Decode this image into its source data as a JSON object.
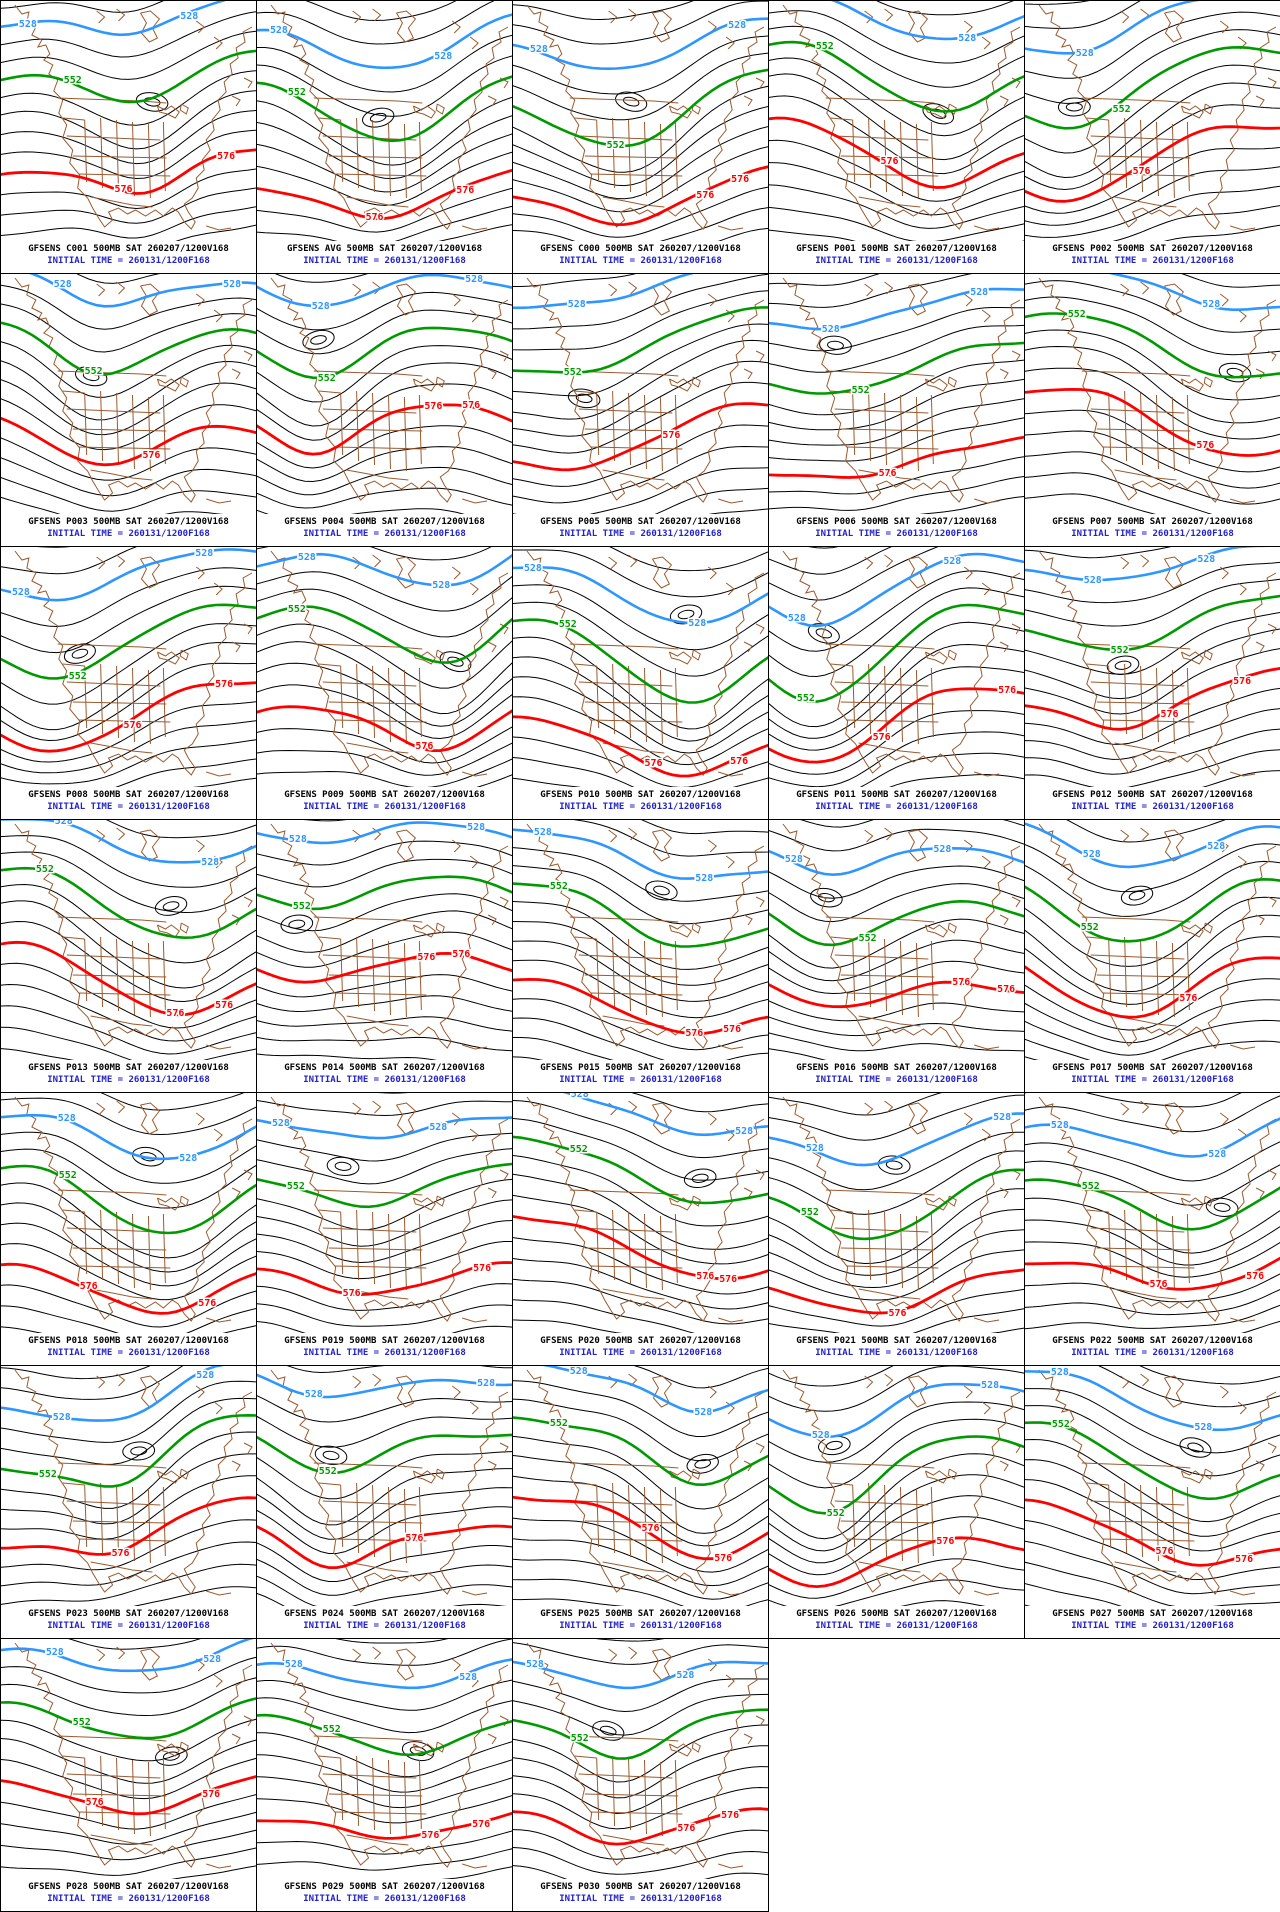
{
  "map_legend": {
    "blue_contour_label": "528",
    "green_contour_label": "552",
    "red_contour_label": "576"
  },
  "colors": {
    "background": "#ffffff",
    "contour_black": "#000000",
    "contour_blue": "#2e96ff",
    "contour_green": "#009a00",
    "contour_red": "#ff0000",
    "geography_brown": "#9b5a2d",
    "caption_black": "#000000",
    "caption_blue": "#2323cc",
    "panel_border": "#000000"
  },
  "panels": [
    {
      "member": "C001",
      "line1": "GFSENS C001 500MB SAT 260207/1200V168",
      "line2": "INITIAL TIME = 260131/1200F168"
    },
    {
      "member": "AVG",
      "line1": "GFSENS AVG 500MB SAT 260207/1200V168",
      "line2": "INITIAL TIME = 260131/1200F168"
    },
    {
      "member": "C000",
      "line1": "GFSENS C000 500MB SAT 260207/1200V168",
      "line2": "INITIAL TIME = 260131/1200F168"
    },
    {
      "member": "P001",
      "line1": "GFSENS P001 500MB SAT 260207/1200V168",
      "line2": "INITIAL TIME = 260131/1200F168"
    },
    {
      "member": "P002",
      "line1": "GFSENS P002 500MB SAT 260207/1200V168",
      "line2": "INITIAL TIME = 260131/1200F168"
    },
    {
      "member": "P003",
      "line1": "GFSENS P003 500MB SAT 260207/1200V168",
      "line2": "INITIAL TIME = 260131/1200F168"
    },
    {
      "member": "P004",
      "line1": "GFSENS P004 500MB SAT 260207/1200V168",
      "line2": "INITIAL TIME = 260131/1200F168"
    },
    {
      "member": "P005",
      "line1": "GFSENS P005 500MB SAT 260207/1200V168",
      "line2": "INITIAL TIME = 260131/1200F168"
    },
    {
      "member": "P006",
      "line1": "GFSENS P006 500MB SAT 260207/1200V168",
      "line2": "INITIAL TIME = 260131/1200F168"
    },
    {
      "member": "P007",
      "line1": "GFSENS P007 500MB SAT 260207/1200V168",
      "line2": "INITIAL TIME = 260131/1200F168"
    },
    {
      "member": "P008",
      "line1": "GFSENS P008 500MB SAT 260207/1200V168",
      "line2": "INITIAL TIME = 260131/1200F168"
    },
    {
      "member": "P009",
      "line1": "GFSENS P009 500MB SAT 260207/1200V168",
      "line2": "INITIAL TIME = 260131/1200F168"
    },
    {
      "member": "P010",
      "line1": "GFSENS P010 500MB SAT 260207/1200V168",
      "line2": "INITIAL TIME = 260131/1200F168"
    },
    {
      "member": "P011",
      "line1": "GFSENS P011 500MB SAT 260207/1200V168",
      "line2": "INITIAL TIME = 260131/1200F168"
    },
    {
      "member": "P012",
      "line1": "GFSENS P012 500MB SAT 260207/1200V168",
      "line2": "INITIAL TIME = 260131/1200F168"
    },
    {
      "member": "P013",
      "line1": "GFSENS P013 500MB SAT 260207/1200V168",
      "line2": "INITIAL TIME = 260131/1200F168"
    },
    {
      "member": "P014",
      "line1": "GFSENS P014 500MB SAT 260207/1200V168",
      "line2": "INITIAL TIME = 260131/1200F168"
    },
    {
      "member": "P015",
      "line1": "GFSENS P015 500MB SAT 260207/1200V168",
      "line2": "INITIAL TIME = 260131/1200F168"
    },
    {
      "member": "P016",
      "line1": "GFSENS P016 500MB SAT 260207/1200V168",
      "line2": "INITIAL TIME = 260131/1200F168"
    },
    {
      "member": "P017",
      "line1": "GFSENS P017 500MB SAT 260207/1200V168",
      "line2": "INITIAL TIME = 260131/1200F168"
    },
    {
      "member": "P018",
      "line1": "GFSENS P018 500MB SAT 260207/1200V168",
      "line2": "INITIAL TIME = 260131/1200F168"
    },
    {
      "member": "P019",
      "line1": "GFSENS P019 500MB SAT 260207/1200V168",
      "line2": "INITIAL TIME = 260131/1200F168"
    },
    {
      "member": "P020",
      "line1": "GFSENS P020 500MB SAT 260207/1200V168",
      "line2": "INITIAL TIME = 260131/1200F168"
    },
    {
      "member": "P021",
      "line1": "GFSENS P021 500MB SAT 260207/1200V168",
      "line2": "INITIAL TIME = 260131/1200F168"
    },
    {
      "member": "P022",
      "line1": "GFSENS P022 500MB SAT 260207/1200V168",
      "line2": "INITIAL TIME = 260131/1200F168"
    },
    {
      "member": "P023",
      "line1": "GFSENS P023 500MB SAT 260207/1200V168",
      "line2": "INITIAL TIME = 260131/1200F168"
    },
    {
      "member": "P024",
      "line1": "GFSENS P024 500MB SAT 260207/1200V168",
      "line2": "INITIAL TIME = 260131/1200F168"
    },
    {
      "member": "P025",
      "line1": "GFSENS P025 500MB SAT 260207/1200V168",
      "line2": "INITIAL TIME = 260131/1200F168"
    },
    {
      "member": "P026",
      "line1": "GFSENS P026 500MB SAT 260207/1200V168",
      "line2": "INITIAL TIME = 260131/1200F168"
    },
    {
      "member": "P027",
      "line1": "GFSENS P027 500MB SAT 260207/1200V168",
      "line2": "INITIAL TIME = 260131/1200F168"
    },
    {
      "member": "P028",
      "line1": "GFSENS P028 500MB SAT 260207/1200V168",
      "line2": "INITIAL TIME = 260131/1200F168"
    },
    {
      "member": "P029",
      "line1": "GFSENS P029 500MB SAT 260207/1200V168",
      "line2": "INITIAL TIME = 260131/1200F168"
    },
    {
      "member": "P030",
      "line1": "GFSENS P030 500MB SAT 260207/1200V168",
      "line2": "INITIAL TIME = 260131/1200F168"
    }
  ]
}
